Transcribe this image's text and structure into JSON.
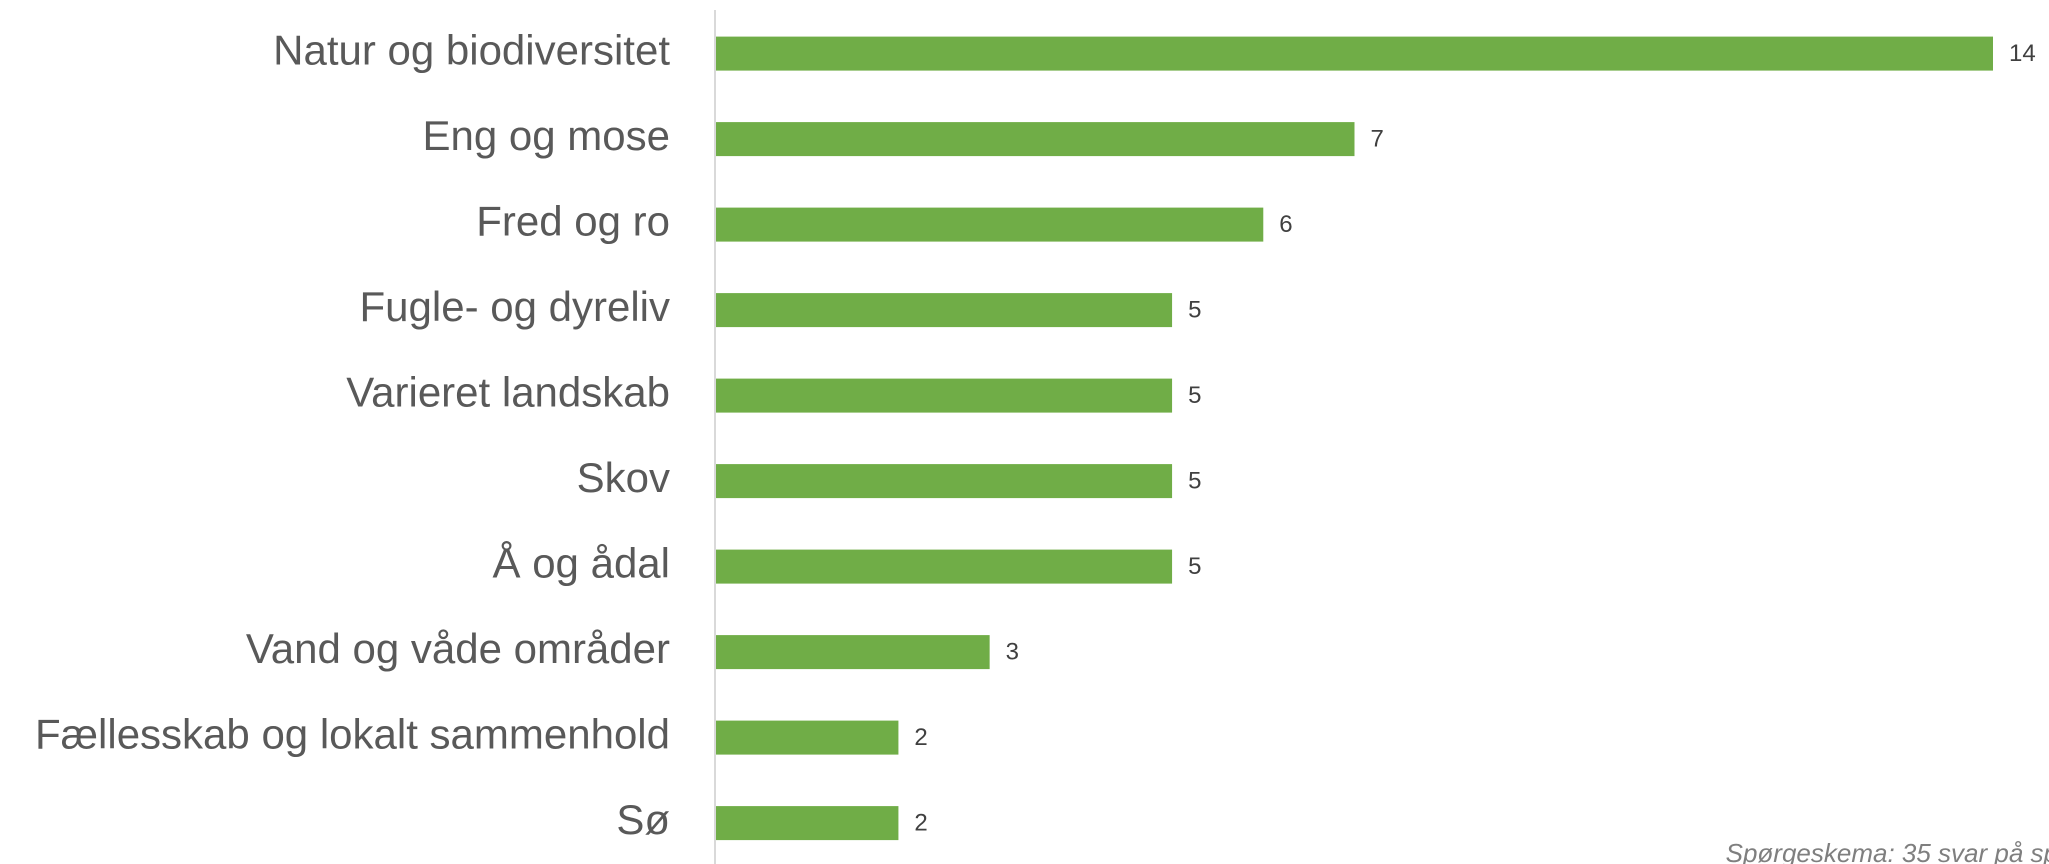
{
  "chart_data": {
    "type": "bar",
    "orientation": "horizontal",
    "categories": [
      "Natur og biodiversitet",
      "Eng og mose",
      "Fred og ro",
      "Fugle- og dyreliv",
      "Varieret landskab",
      "Skov",
      "Å og ådal",
      "Vand og våde områder",
      "Fællesskab og lokalt sammenhold",
      "Sø"
    ],
    "values": [
      14,
      7,
      6,
      5,
      5,
      5,
      5,
      3,
      2,
      2
    ],
    "color": "#70ad47",
    "annotation": "Spørgeskema: 35 svar på sp"
  }
}
